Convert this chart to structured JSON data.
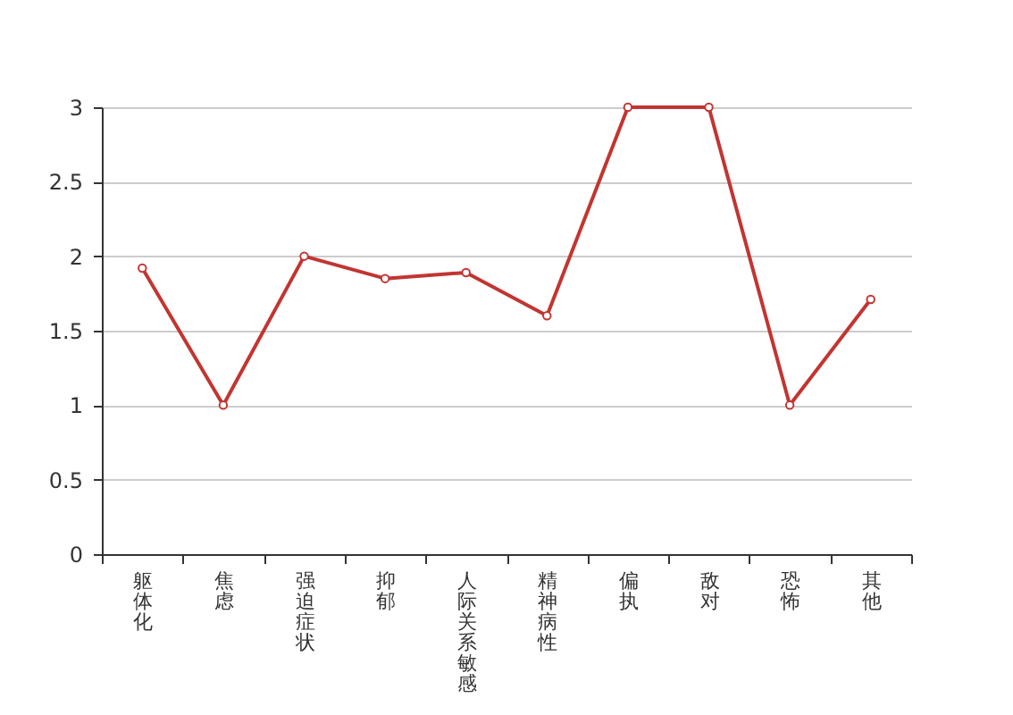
{
  "chart_data": {
    "type": "line",
    "categories": [
      "躯体化",
      "焦虑",
      "强迫症状",
      "抑郁",
      "人际关系敏感",
      "精神病性",
      "偏执",
      "敌对",
      "恐怖",
      "其他"
    ],
    "series": [
      {
        "color": "#c23531",
        "values": [
          1.92,
          1,
          2,
          1.85,
          1.89,
          1.6,
          3,
          3,
          1,
          1.71
        ]
      }
    ],
    "ylim": [
      0,
      3
    ],
    "yticks": [
      0,
      0.5,
      1,
      1.5,
      2,
      2.5,
      3
    ],
    "grid": "y",
    "marker": "circle",
    "line_style": "solid"
  }
}
